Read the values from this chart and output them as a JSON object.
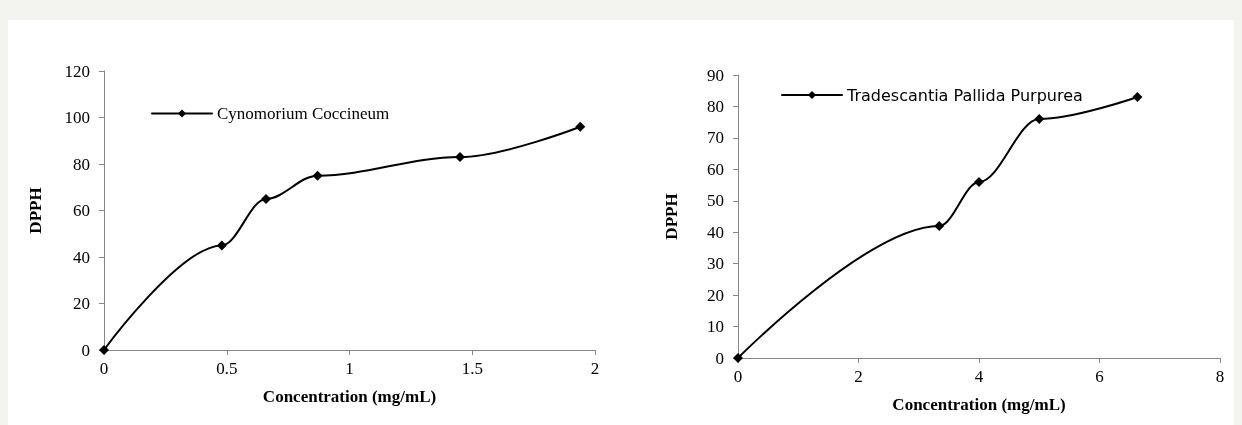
{
  "chart_data": [
    {
      "type": "line",
      "xlabel": "Concentration (mg/mL)",
      "ylabel": "DPPH",
      "x": [
        0,
        0.48,
        0.66,
        0.87,
        1.45,
        1.94
      ],
      "series": [
        {
          "name": "Cynomorium Coccineum",
          "color": "#000000",
          "values": [
            0,
            45,
            65,
            75,
            83,
            96
          ]
        }
      ],
      "xlim": [
        0,
        2
      ],
      "xticks": [
        0,
        0.5,
        1,
        1.5,
        2
      ],
      "ylim": [
        0,
        120
      ],
      "yticks": [
        0,
        20,
        40,
        60,
        80,
        100,
        120
      ],
      "marker": "diamond",
      "line_style": "solid",
      "legend": "top left"
    },
    {
      "type": "line",
      "xlabel": "Concentration (mg/mL)",
      "ylabel": "DPPH",
      "x": [
        0,
        3.34,
        4,
        5,
        6.63
      ],
      "series": [
        {
          "name": "Tradescantia Pallida Purpurea",
          "color": "#000000",
          "values": [
            0,
            42,
            56,
            76,
            83
          ]
        }
      ],
      "xlim": [
        0,
        8
      ],
      "xticks": [
        0,
        2,
        4,
        6,
        8
      ],
      "ylim": [
        0,
        90
      ],
      "yticks": [
        0,
        10,
        20,
        30,
        40,
        50,
        60,
        70,
        80,
        90
      ],
      "marker": "diamond",
      "line_style": "solid",
      "legend": "top left"
    }
  ]
}
